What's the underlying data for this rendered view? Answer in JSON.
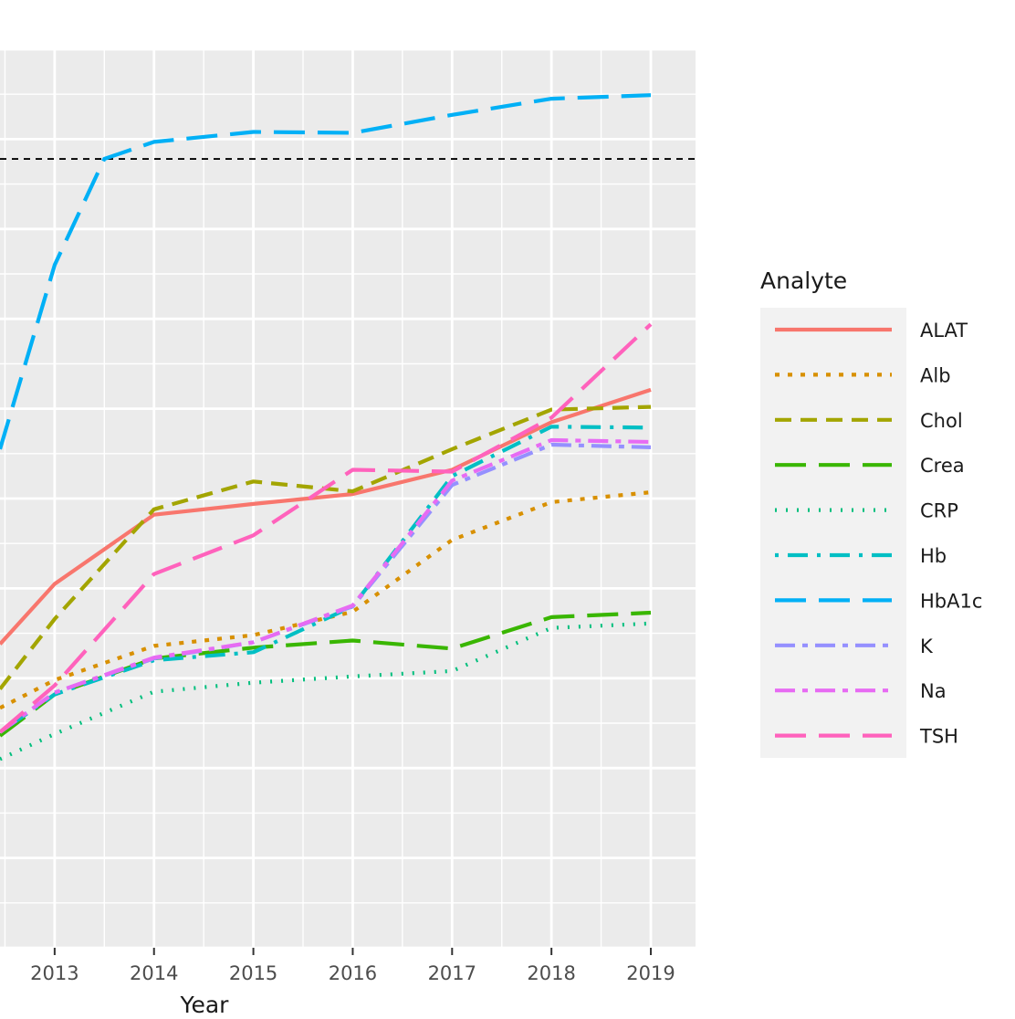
{
  "chart_data": {
    "type": "line",
    "title": "",
    "xlabel": "Year",
    "ylabel": "",
    "legend_title": "Analyte",
    "legend_position": "right",
    "x": [
      2013,
      2014,
      2015,
      2016,
      2017,
      2018,
      2019
    ],
    "x_tick_labels": [
      "2013",
      "2014",
      "2015",
      "2016",
      "2017",
      "2018",
      "2019"
    ],
    "xlim": [
      2012.45,
      2019.45
    ],
    "ylim": [
      0.0,
      1.0
    ],
    "grid": true,
    "reference_line": {
      "y": 0.878,
      "style": "dashed",
      "color": "#000000"
    },
    "series": [
      {
        "name": "ALAT",
        "color": "#F8766D",
        "dash": "solid",
        "x": [
          2012.45,
          2013,
          2014,
          2015,
          2016,
          2017,
          2018,
          2019
        ],
        "values": [
          0.338,
          0.405,
          0.482,
          0.494,
          0.505,
          0.532,
          0.585,
          0.621
        ]
      },
      {
        "name": "Alb",
        "color": "#D89000",
        "dash": "dotted",
        "x": [
          2012.45,
          2013,
          2014,
          2015,
          2016,
          2017,
          2018,
          2019
        ],
        "values": [
          0.267,
          0.298,
          0.336,
          0.348,
          0.374,
          0.454,
          0.496,
          0.507
        ]
      },
      {
        "name": "Chol",
        "color": "#A3A500",
        "dash": "dashed",
        "x": [
          2012.45,
          2013,
          2014,
          2015,
          2016,
          2017,
          2018,
          2019
        ],
        "values": [
          0.288,
          0.366,
          0.488,
          0.519,
          0.508,
          0.555,
          0.599,
          0.602
        ]
      },
      {
        "name": "Crea",
        "color": "#39B600",
        "dash": "longdash",
        "x": [
          2012.45,
          2013,
          2014,
          2015,
          2016,
          2017,
          2018,
          2019
        ],
        "values": [
          0.236,
          0.282,
          0.322,
          0.334,
          0.342,
          0.333,
          0.368,
          0.373
        ]
      },
      {
        "name": "CRP",
        "color": "#00BF7D",
        "dash": "dotted2",
        "x": [
          2012.45,
          2013,
          2014,
          2015,
          2016,
          2017,
          2018,
          2019
        ],
        "values": [
          0.21,
          0.238,
          0.285,
          0.295,
          0.302,
          0.308,
          0.356,
          0.361
        ]
      },
      {
        "name": "Hb",
        "color": "#00BFC4",
        "dash": "dotdash",
        "x": [
          2012.45,
          2013,
          2014,
          2015,
          2016,
          2017,
          2018,
          2019
        ],
        "values": [
          0.24,
          0.282,
          0.32,
          0.329,
          0.38,
          0.525,
          0.58,
          0.579
        ]
      },
      {
        "name": "HbA1c",
        "color": "#00B0F6",
        "dash": "longdash",
        "x": [
          2012.45,
          2013,
          2013.5,
          2014,
          2015,
          2016,
          2017,
          2018,
          2019
        ],
        "values": [
          0.555,
          0.76,
          0.878,
          0.897,
          0.908,
          0.907,
          0.927,
          0.945,
          0.949
        ]
      },
      {
        "name": "K",
        "color": "#9590FF",
        "dash": "twodash",
        "x": [
          2012.45,
          2013,
          2014,
          2015,
          2016,
          2017,
          2018,
          2019
        ],
        "values": [
          0.24,
          0.284,
          0.322,
          0.34,
          0.38,
          0.515,
          0.56,
          0.557
        ]
      },
      {
        "name": "Na",
        "color": "#E76BF3",
        "dash": "twodash",
        "x": [
          2012.45,
          2013,
          2014,
          2015,
          2016,
          2017,
          2018,
          2019
        ],
        "values": [
          0.24,
          0.284,
          0.323,
          0.34,
          0.381,
          0.52,
          0.565,
          0.563
        ]
      },
      {
        "name": "TSH",
        "color": "#FF62BC",
        "dash": "longdash",
        "x": [
          2012.45,
          2013,
          2014,
          2015,
          2016,
          2017,
          2018,
          2019
        ],
        "values": [
          0.24,
          0.292,
          0.416,
          0.459,
          0.532,
          0.53,
          0.59,
          0.694
        ]
      }
    ]
  }
}
